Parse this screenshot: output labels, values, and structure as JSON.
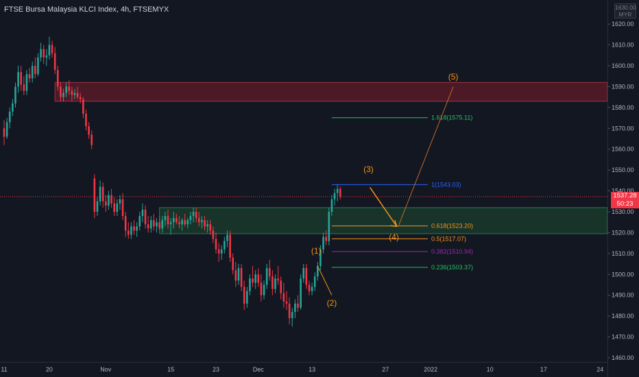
{
  "header": {
    "symbol_title": "FTSE Bursa Malaysia KLCI Index, 4h, FTSEMYX",
    "currency_top": "1630.00",
    "currency": "MYR"
  },
  "last_price": {
    "price": "1537.28",
    "countdown": "50:23"
  },
  "colors": {
    "background": "#131722",
    "up": "#26a69a",
    "down": "#f23645",
    "wave": "#f7931a",
    "resistance_zone": "#7a1d2a",
    "support_zone": "#1e4d32"
  },
  "chart_data": {
    "type": "candlestick",
    "title": "FTSE Bursa Malaysia KLCI Index, 4h, FTSEMYX",
    "ylim": [
      1457,
      1633
    ],
    "y_ticks": [
      1460,
      1470,
      1480,
      1490,
      1500,
      1510,
      1520,
      1530,
      1540,
      1550,
      1560,
      1570,
      1580,
      1590,
      1600,
      1610,
      1620
    ],
    "y_tick_labels": [
      "1460.00",
      "1470.00",
      "1480.00",
      "1490.00",
      "1500.00",
      "1510.00",
      "1520.00",
      "1530.00",
      "1540.00",
      "1550.00",
      "1560.00",
      "1570.00",
      "1580.00",
      "1590.00",
      "1600.00",
      "1610.00",
      "1620.00"
    ],
    "x_range": [
      0,
      220
    ],
    "x_ticks": [
      {
        "x": 0,
        "label": "11"
      },
      {
        "x": 16,
        "label": "20"
      },
      {
        "x": 36,
        "label": "Nov"
      },
      {
        "x": 59,
        "label": "15"
      },
      {
        "x": 75,
        "label": "23"
      },
      {
        "x": 90,
        "label": "Dec"
      },
      {
        "x": 109,
        "label": "13"
      },
      {
        "x": 135,
        "label": "27"
      },
      {
        "x": 151,
        "label": "2022"
      },
      {
        "x": 172,
        "label": "10"
      },
      {
        "x": 191,
        "label": "17"
      },
      {
        "x": 211,
        "label": "24"
      }
    ],
    "candles": [
      {
        "x": 0,
        "o": 1570,
        "h": 1574,
        "l": 1562,
        "c": 1566
      },
      {
        "x": 1,
        "o": 1566,
        "h": 1575,
        "l": 1565,
        "c": 1573
      },
      {
        "x": 2,
        "o": 1573,
        "h": 1580,
        "l": 1570,
        "c": 1578
      },
      {
        "x": 3,
        "o": 1578,
        "h": 1584,
        "l": 1576,
        "c": 1582
      },
      {
        "x": 4,
        "o": 1582,
        "h": 1592,
        "l": 1580,
        "c": 1590
      },
      {
        "x": 5,
        "o": 1590,
        "h": 1600,
        "l": 1587,
        "c": 1597
      },
      {
        "x": 6,
        "o": 1597,
        "h": 1600,
        "l": 1588,
        "c": 1591
      },
      {
        "x": 7,
        "o": 1591,
        "h": 1595,
        "l": 1586,
        "c": 1588
      },
      {
        "x": 8,
        "o": 1588,
        "h": 1598,
        "l": 1586,
        "c": 1596
      },
      {
        "x": 9,
        "o": 1596,
        "h": 1599,
        "l": 1592,
        "c": 1594
      },
      {
        "x": 10,
        "o": 1594,
        "h": 1602,
        "l": 1592,
        "c": 1600
      },
      {
        "x": 11,
        "o": 1600,
        "h": 1604,
        "l": 1594,
        "c": 1596
      },
      {
        "x": 12,
        "o": 1596,
        "h": 1606,
        "l": 1595,
        "c": 1604
      },
      {
        "x": 13,
        "o": 1604,
        "h": 1611,
        "l": 1602,
        "c": 1608
      },
      {
        "x": 14,
        "o": 1608,
        "h": 1610,
        "l": 1601,
        "c": 1604
      },
      {
        "x": 15,
        "o": 1604,
        "h": 1608,
        "l": 1600,
        "c": 1605
      },
      {
        "x": 16,
        "o": 1605,
        "h": 1614,
        "l": 1603,
        "c": 1610
      },
      {
        "x": 17,
        "o": 1610,
        "h": 1612,
        "l": 1604,
        "c": 1606
      },
      {
        "x": 18,
        "o": 1606,
        "h": 1609,
        "l": 1596,
        "c": 1598
      },
      {
        "x": 19,
        "o": 1598,
        "h": 1600,
        "l": 1588,
        "c": 1590
      },
      {
        "x": 20,
        "o": 1590,
        "h": 1592,
        "l": 1583,
        "c": 1585
      },
      {
        "x": 21,
        "o": 1585,
        "h": 1589,
        "l": 1583,
        "c": 1587
      },
      {
        "x": 22,
        "o": 1587,
        "h": 1592,
        "l": 1585,
        "c": 1590
      },
      {
        "x": 23,
        "o": 1590,
        "h": 1593,
        "l": 1586,
        "c": 1588
      },
      {
        "x": 24,
        "o": 1588,
        "h": 1590,
        "l": 1583,
        "c": 1586
      },
      {
        "x": 25,
        "o": 1586,
        "h": 1589,
        "l": 1584,
        "c": 1587
      },
      {
        "x": 26,
        "o": 1587,
        "h": 1590,
        "l": 1584,
        "c": 1585
      },
      {
        "x": 27,
        "o": 1585,
        "h": 1587,
        "l": 1582,
        "c": 1584
      },
      {
        "x": 28,
        "o": 1584,
        "h": 1585,
        "l": 1575,
        "c": 1577
      },
      {
        "x": 29,
        "o": 1577,
        "h": 1579,
        "l": 1569,
        "c": 1571
      },
      {
        "x": 30,
        "o": 1571,
        "h": 1573,
        "l": 1565,
        "c": 1567
      },
      {
        "x": 31,
        "o": 1567,
        "h": 1569,
        "l": 1560,
        "c": 1562
      },
      {
        "x": 32,
        "o": 1546,
        "h": 1548,
        "l": 1527,
        "c": 1530
      },
      {
        "x": 33,
        "o": 1530,
        "h": 1537,
        "l": 1528,
        "c": 1535
      },
      {
        "x": 34,
        "o": 1535,
        "h": 1545,
        "l": 1533,
        "c": 1542
      },
      {
        "x": 35,
        "o": 1542,
        "h": 1544,
        "l": 1532,
        "c": 1535
      },
      {
        "x": 36,
        "o": 1535,
        "h": 1538,
        "l": 1530,
        "c": 1533
      },
      {
        "x": 37,
        "o": 1533,
        "h": 1540,
        "l": 1531,
        "c": 1538
      },
      {
        "x": 38,
        "o": 1538,
        "h": 1541,
        "l": 1532,
        "c": 1534
      },
      {
        "x": 39,
        "o": 1534,
        "h": 1537,
        "l": 1528,
        "c": 1530
      },
      {
        "x": 40,
        "o": 1530,
        "h": 1536,
        "l": 1528,
        "c": 1534
      },
      {
        "x": 41,
        "o": 1534,
        "h": 1538,
        "l": 1531,
        "c": 1536
      },
      {
        "x": 42,
        "o": 1536,
        "h": 1539,
        "l": 1526,
        "c": 1528
      },
      {
        "x": 43,
        "o": 1528,
        "h": 1530,
        "l": 1518,
        "c": 1521
      },
      {
        "x": 44,
        "o": 1521,
        "h": 1525,
        "l": 1517,
        "c": 1519
      },
      {
        "x": 45,
        "o": 1519,
        "h": 1525,
        "l": 1517,
        "c": 1523
      },
      {
        "x": 46,
        "o": 1523,
        "h": 1526,
        "l": 1519,
        "c": 1521
      },
      {
        "x": 47,
        "o": 1521,
        "h": 1525,
        "l": 1518,
        "c": 1523
      },
      {
        "x": 48,
        "o": 1523,
        "h": 1530,
        "l": 1521,
        "c": 1528
      },
      {
        "x": 49,
        "o": 1528,
        "h": 1534,
        "l": 1525,
        "c": 1531
      },
      {
        "x": 50,
        "o": 1531,
        "h": 1533,
        "l": 1522,
        "c": 1524
      },
      {
        "x": 51,
        "o": 1524,
        "h": 1528,
        "l": 1520,
        "c": 1522
      },
      {
        "x": 52,
        "o": 1522,
        "h": 1528,
        "l": 1520,
        "c": 1526
      },
      {
        "x": 53,
        "o": 1526,
        "h": 1529,
        "l": 1521,
        "c": 1523
      },
      {
        "x": 54,
        "o": 1523,
        "h": 1527,
        "l": 1520,
        "c": 1525
      },
      {
        "x": 55,
        "o": 1525,
        "h": 1528,
        "l": 1521,
        "c": 1522
      },
      {
        "x": 56,
        "o": 1522,
        "h": 1528,
        "l": 1520,
        "c": 1526
      },
      {
        "x": 57,
        "o": 1526,
        "h": 1530,
        "l": 1523,
        "c": 1528
      },
      {
        "x": 58,
        "o": 1528,
        "h": 1531,
        "l": 1522,
        "c": 1524
      },
      {
        "x": 59,
        "o": 1524,
        "h": 1527,
        "l": 1519,
        "c": 1525
      },
      {
        "x": 60,
        "o": 1525,
        "h": 1530,
        "l": 1522,
        "c": 1527
      },
      {
        "x": 61,
        "o": 1527,
        "h": 1529,
        "l": 1524,
        "c": 1525
      },
      {
        "x": 62,
        "o": 1525,
        "h": 1528,
        "l": 1522,
        "c": 1524
      },
      {
        "x": 63,
        "o": 1524,
        "h": 1527,
        "l": 1521,
        "c": 1526
      },
      {
        "x": 64,
        "o": 1526,
        "h": 1529,
        "l": 1523,
        "c": 1524
      },
      {
        "x": 65,
        "o": 1524,
        "h": 1527,
        "l": 1522,
        "c": 1526
      },
      {
        "x": 66,
        "o": 1526,
        "h": 1530,
        "l": 1524,
        "c": 1528
      },
      {
        "x": 67,
        "o": 1528,
        "h": 1532,
        "l": 1525,
        "c": 1530
      },
      {
        "x": 68,
        "o": 1530,
        "h": 1532,
        "l": 1525,
        "c": 1527
      },
      {
        "x": 69,
        "o": 1527,
        "h": 1530,
        "l": 1523,
        "c": 1525
      },
      {
        "x": 70,
        "o": 1525,
        "h": 1528,
        "l": 1522,
        "c": 1526
      },
      {
        "x": 71,
        "o": 1526,
        "h": 1528,
        "l": 1521,
        "c": 1523
      },
      {
        "x": 72,
        "o": 1523,
        "h": 1526,
        "l": 1520,
        "c": 1524
      },
      {
        "x": 73,
        "o": 1524,
        "h": 1526,
        "l": 1519,
        "c": 1521
      },
      {
        "x": 74,
        "o": 1521,
        "h": 1523,
        "l": 1515,
        "c": 1517
      },
      {
        "x": 75,
        "o": 1517,
        "h": 1520,
        "l": 1510,
        "c": 1512
      },
      {
        "x": 76,
        "o": 1512,
        "h": 1515,
        "l": 1506,
        "c": 1510
      },
      {
        "x": 77,
        "o": 1510,
        "h": 1514,
        "l": 1507,
        "c": 1512
      },
      {
        "x": 78,
        "o": 1512,
        "h": 1518,
        "l": 1510,
        "c": 1516
      },
      {
        "x": 79,
        "o": 1516,
        "h": 1521,
        "l": 1513,
        "c": 1519
      },
      {
        "x": 80,
        "o": 1519,
        "h": 1521,
        "l": 1506,
        "c": 1508
      },
      {
        "x": 81,
        "o": 1508,
        "h": 1510,
        "l": 1500,
        "c": 1502
      },
      {
        "x": 82,
        "o": 1502,
        "h": 1506,
        "l": 1494,
        "c": 1497
      },
      {
        "x": 83,
        "o": 1497,
        "h": 1505,
        "l": 1495,
        "c": 1503
      },
      {
        "x": 84,
        "o": 1503,
        "h": 1505,
        "l": 1492,
        "c": 1494
      },
      {
        "x": 85,
        "o": 1494,
        "h": 1497,
        "l": 1483,
        "c": 1486
      },
      {
        "x": 86,
        "o": 1486,
        "h": 1494,
        "l": 1484,
        "c": 1492
      },
      {
        "x": 87,
        "o": 1492,
        "h": 1500,
        "l": 1490,
        "c": 1498
      },
      {
        "x": 88,
        "o": 1498,
        "h": 1504,
        "l": 1494,
        "c": 1496
      },
      {
        "x": 89,
        "o": 1496,
        "h": 1502,
        "l": 1493,
        "c": 1500
      },
      {
        "x": 90,
        "o": 1500,
        "h": 1503,
        "l": 1494,
        "c": 1496
      },
      {
        "x": 91,
        "o": 1496,
        "h": 1500,
        "l": 1487,
        "c": 1490
      },
      {
        "x": 92,
        "o": 1490,
        "h": 1497,
        "l": 1488,
        "c": 1495
      },
      {
        "x": 93,
        "o": 1495,
        "h": 1505,
        "l": 1493,
        "c": 1503
      },
      {
        "x": 94,
        "o": 1503,
        "h": 1507,
        "l": 1497,
        "c": 1499
      },
      {
        "x": 95,
        "o": 1499,
        "h": 1502,
        "l": 1490,
        "c": 1493
      },
      {
        "x": 96,
        "o": 1493,
        "h": 1500,
        "l": 1491,
        "c": 1498
      },
      {
        "x": 97,
        "o": 1498,
        "h": 1504,
        "l": 1495,
        "c": 1497
      },
      {
        "x": 98,
        "o": 1497,
        "h": 1499,
        "l": 1488,
        "c": 1491
      },
      {
        "x": 99,
        "o": 1491,
        "h": 1496,
        "l": 1484,
        "c": 1487
      },
      {
        "x": 100,
        "o": 1487,
        "h": 1492,
        "l": 1483,
        "c": 1486
      },
      {
        "x": 101,
        "o": 1486,
        "h": 1489,
        "l": 1476,
        "c": 1479
      },
      {
        "x": 102,
        "o": 1479,
        "h": 1484,
        "l": 1475,
        "c": 1482
      },
      {
        "x": 103,
        "o": 1482,
        "h": 1488,
        "l": 1479,
        "c": 1486
      },
      {
        "x": 104,
        "o": 1486,
        "h": 1490,
        "l": 1482,
        "c": 1484
      },
      {
        "x": 105,
        "o": 1484,
        "h": 1500,
        "l": 1483,
        "c": 1498
      },
      {
        "x": 106,
        "o": 1498,
        "h": 1505,
        "l": 1496,
        "c": 1503
      },
      {
        "x": 107,
        "o": 1503,
        "h": 1505,
        "l": 1493,
        "c": 1495
      },
      {
        "x": 108,
        "o": 1495,
        "h": 1497,
        "l": 1490,
        "c": 1492
      },
      {
        "x": 109,
        "o": 1492,
        "h": 1496,
        "l": 1490,
        "c": 1494
      },
      {
        "x": 110,
        "o": 1494,
        "h": 1501,
        "l": 1492,
        "c": 1499
      },
      {
        "x": 111,
        "o": 1499,
        "h": 1506,
        "l": 1497,
        "c": 1504
      },
      {
        "x": 112,
        "o": 1504,
        "h": 1514,
        "l": 1502,
        "c": 1512
      },
      {
        "x": 113,
        "o": 1512,
        "h": 1520,
        "l": 1510,
        "c": 1518
      },
      {
        "x": 114,
        "o": 1518,
        "h": 1521,
        "l": 1514,
        "c": 1516
      },
      {
        "x": 115,
        "o": 1516,
        "h": 1532,
        "l": 1514,
        "c": 1530
      },
      {
        "x": 116,
        "o": 1530,
        "h": 1538,
        "l": 1528,
        "c": 1536
      },
      {
        "x": 117,
        "o": 1536,
        "h": 1541,
        "l": 1533,
        "c": 1539
      },
      {
        "x": 118,
        "o": 1539,
        "h": 1543,
        "l": 1535,
        "c": 1541
      },
      {
        "x": 119,
        "o": 1541,
        "h": 1542,
        "l": 1536,
        "c": 1537.28
      }
    ],
    "zones": [
      {
        "name": "resistance",
        "from_x": 18,
        "to_x": 220,
        "y_low": 1583,
        "y_high": 1592
      },
      {
        "name": "support",
        "from_x": 55,
        "to_x": 220,
        "y_low": 1519.5,
        "y_high": 1532
      }
    ],
    "fibonacci": {
      "from_x": 116,
      "to_x": 150,
      "levels": [
        {
          "ratio": "1.618",
          "value": 1575.11,
          "label": "1.618(1575.11)",
          "color": "#22c55e"
        },
        {
          "ratio": "1",
          "value": 1543.03,
          "label": "1(1543.03)",
          "color": "#2962ff"
        },
        {
          "ratio": "0.618",
          "value": 1523.2,
          "label": "0.618(1523.20)",
          "color": "#f7931a"
        },
        {
          "ratio": "0.5",
          "value": 1517.07,
          "label": "0.5(1517.07)",
          "color": "#f7931a"
        },
        {
          "ratio": "0.382",
          "value": 1510.94,
          "label": "0.382(1510.94)",
          "color": "#9c27b0"
        },
        {
          "ratio": "0.236",
          "value": 1503.37,
          "label": "0.236(1503.37)",
          "color": "#22c55e"
        }
      ]
    },
    "elliott_waves": [
      {
        "label": "(1)",
        "x": 111,
        "y": 1504,
        "label_x": 110.5,
        "label_y": 1510
      },
      {
        "label": "(2)",
        "x": 116,
        "y": 1490,
        "label_x": 116,
        "label_y": 1485
      },
      {
        "label": "(3)",
        "x": 130,
        "y": 1543,
        "label_x": 129,
        "label_y": 1549
      },
      {
        "label": "(4)",
        "x": 139,
        "y": 1523,
        "label_x": 138,
        "label_y": 1516.5
      },
      {
        "label": "(5)",
        "x": 159,
        "y": 1590,
        "label_x": 159,
        "label_y": 1593.5
      }
    ],
    "last_price": 1537.28
  }
}
